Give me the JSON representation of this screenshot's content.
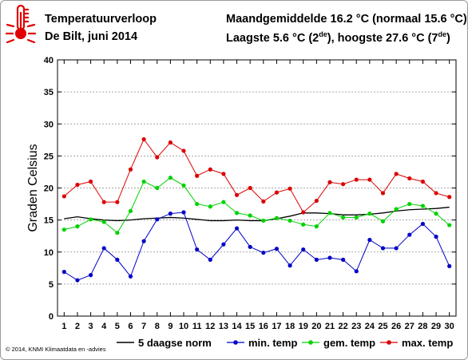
{
  "header": {
    "title": "Temperatuurverloop",
    "subtitle": "De Bilt, juni 2014",
    "monthly_mean": "Maandgemiddelde 16.2 °C (normaal 15.6 °C)",
    "extremes_prefix": "Laagste 5.6 °C (2",
    "extremes_sup1": "de",
    "extremes_mid": "), hoogste 27.6 °C (7",
    "extremes_sup2": "de",
    "extremes_suffix": ")"
  },
  "colors": {
    "norm": "#000000",
    "min": "#0000c8",
    "mean": "#00d200",
    "max": "#dc0000",
    "icon": "#e00000"
  },
  "icon": "thermometer-icon",
  "footer": {
    "copyright": "© 2014, KNMI Klimaatdata en -advies"
  },
  "chart_data": {
    "type": "line",
    "ylabel": "Graden Celsius",
    "xlabel": "",
    "ylim": [
      0,
      40
    ],
    "yticks": [
      0,
      5,
      10,
      15,
      20,
      25,
      30,
      35,
      40
    ],
    "x": [
      1,
      2,
      3,
      4,
      5,
      6,
      7,
      8,
      9,
      10,
      11,
      12,
      13,
      14,
      15,
      16,
      17,
      18,
      19,
      20,
      21,
      22,
      23,
      24,
      25,
      26,
      27,
      28,
      29,
      30
    ],
    "xlim": [
      0.5,
      30.5
    ],
    "grid": "horizontal dashed",
    "legend": "bottom",
    "series": [
      {
        "key": "norm",
        "name": "5 daagse norm",
        "markers": false,
        "values": [
          15.2,
          15.5,
          15.2,
          15.0,
          14.9,
          15.0,
          15.2,
          15.3,
          15.4,
          15.3,
          15.1,
          14.9,
          14.9,
          15.0,
          14.9,
          14.9,
          15.2,
          15.6,
          16.1,
          16.1,
          16.0,
          15.8,
          15.8,
          15.9,
          16.1,
          16.4,
          16.6,
          16.7,
          16.8,
          17.0
        ]
      },
      {
        "key": "min",
        "name": "min. temp",
        "markers": true,
        "values": [
          6.9,
          5.6,
          6.4,
          10.6,
          8.8,
          6.2,
          11.7,
          15.1,
          16.0,
          16.2,
          10.4,
          8.8,
          11.2,
          13.7,
          10.8,
          9.9,
          10.5,
          7.9,
          10.4,
          8.8,
          9.1,
          8.8,
          7.0,
          11.9,
          10.6,
          10.6,
          12.7,
          14.4,
          12.4,
          7.8
        ]
      },
      {
        "key": "mean",
        "name": "gem. temp",
        "markers": true,
        "values": [
          13.5,
          14.0,
          15.1,
          14.7,
          13.0,
          16.4,
          21.0,
          20.0,
          21.6,
          20.4,
          17.5,
          17.1,
          17.8,
          16.1,
          15.7,
          14.9,
          15.3,
          14.9,
          14.3,
          14.0,
          16.1,
          15.4,
          15.4,
          16.0,
          14.8,
          16.7,
          17.5,
          17.2,
          16.0,
          14.2
        ]
      },
      {
        "key": "max",
        "name": "max. temp",
        "markers": true,
        "values": [
          18.7,
          20.5,
          21.0,
          17.8,
          17.8,
          22.9,
          27.6,
          24.8,
          27.1,
          25.8,
          21.9,
          22.9,
          22.2,
          18.9,
          20.0,
          17.9,
          19.3,
          19.9,
          16.2,
          18.0,
          20.9,
          20.6,
          21.3,
          21.3,
          19.2,
          22.2,
          21.5,
          21.0,
          19.2,
          18.6
        ]
      }
    ]
  }
}
